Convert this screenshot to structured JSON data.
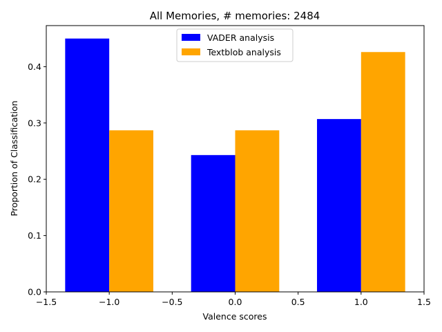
{
  "chart_data": {
    "type": "bar",
    "title": "All Memories, # memories: 2484",
    "xlabel": "Valence scores",
    "ylabel": "Proportion of Classification",
    "xlim": [
      -1.5,
      1.5
    ],
    "ylim": [
      0,
      0.473
    ],
    "x_ticks": [
      -1.5,
      -1.0,
      -0.5,
      0.0,
      0.5,
      1.0,
      1.5
    ],
    "x_tick_labels": [
      "−1.5",
      "−1.0",
      "−0.5",
      "0.0",
      "0.5",
      "1.0",
      "1.5"
    ],
    "y_ticks": [
      0.0,
      0.1,
      0.2,
      0.3,
      0.4
    ],
    "y_tick_labels": [
      "0.0",
      "0.1",
      "0.2",
      "0.3",
      "0.4"
    ],
    "bar_width": 0.35,
    "x": [
      -1,
      0,
      1
    ],
    "series": [
      {
        "name": "VADER analysis",
        "color": "#0000ff",
        "offset": -0.175,
        "values": [
          0.45,
          0.243,
          0.307
        ]
      },
      {
        "name": "Textblob analysis",
        "color": "#ffa500",
        "offset": 0.175,
        "values": [
          0.287,
          0.287,
          0.426
        ]
      }
    ],
    "grid": false,
    "legend_position": "upper-center"
  }
}
